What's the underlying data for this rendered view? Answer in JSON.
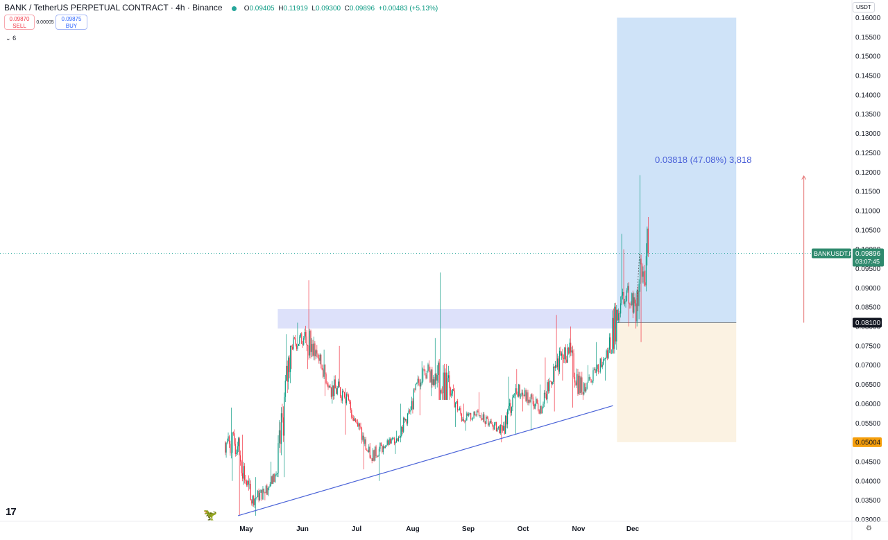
{
  "header": {
    "symbol": "BANK / TetherUS PERPETUAL CONTRACT · 4h · Binance",
    "ohlc_open_key": "O",
    "ohlc_open": "0.09405",
    "ohlc_high_key": "H",
    "ohlc_high": "0.11919",
    "ohlc_low_key": "L",
    "ohlc_low": "0.09300",
    "ohlc_close_key": "C",
    "ohlc_close": "0.09896",
    "change": "+0.00483 (+5.13%)"
  },
  "trade": {
    "sell_price": "0.09870",
    "sell_label": "SELL",
    "spread": "0.00005",
    "buy_price": "0.09875",
    "buy_label": "BUY"
  },
  "indicators_collapsed_count": "6",
  "price_axis_unit": "USDT",
  "measure": {
    "label": "0.03818 (47.08%) 3,818"
  },
  "colors": {
    "up": "#089981",
    "down": "#f23645",
    "trendline": "#4a63d8",
    "profit_zone": "#cfe3f8",
    "loss_zone": "#fbf2e2",
    "resistance_zone": "#d9def9"
  },
  "chart_data": {
    "type": "candlestick",
    "title": "BANK / TetherUS PERPETUAL CONTRACT · 4h · Binance",
    "x_ticks": [
      "May",
      "Jun",
      "Jul",
      "Aug",
      "Sep",
      "Oct",
      "Nov",
      "Dec"
    ],
    "y_ticks": [
      "0.16000",
      "0.15500",
      "0.15000",
      "0.14500",
      "0.14000",
      "0.13500",
      "0.13000",
      "0.12500",
      "0.12000",
      "0.11500",
      "0.11000",
      "0.10500",
      "0.10000",
      "0.09500",
      "0.09000",
      "0.08500",
      "0.08000",
      "0.07500",
      "0.07000",
      "0.06500",
      "0.06000",
      "0.05500",
      "0.05000",
      "0.04500",
      "0.04000",
      "0.03500",
      "0.03000"
    ],
    "ylim": [
      0.03,
      0.16
    ],
    "timeline_weeks": [
      {
        "week": 0,
        "open": 0.05,
        "high": 0.059,
        "low": 0.04,
        "close": 0.049
      },
      {
        "week": 1,
        "open": 0.049,
        "high": 0.052,
        "low": 0.031,
        "close": 0.035
      },
      {
        "week": 2,
        "open": 0.035,
        "high": 0.041,
        "low": 0.031,
        "close": 0.037
      },
      {
        "week": 3,
        "open": 0.037,
        "high": 0.045,
        "low": 0.035,
        "close": 0.042
      },
      {
        "week": 4,
        "open": 0.042,
        "high": 0.078,
        "low": 0.041,
        "close": 0.075
      },
      {
        "week": 5,
        "open": 0.075,
        "high": 0.081,
        "low": 0.069,
        "close": 0.077
      },
      {
        "week": 6,
        "open": 0.077,
        "high": 0.092,
        "low": 0.069,
        "close": 0.073
      },
      {
        "week": 7,
        "open": 0.073,
        "high": 0.074,
        "low": 0.062,
        "close": 0.064
      },
      {
        "week": 8,
        "open": 0.064,
        "high": 0.075,
        "low": 0.06,
        "close": 0.063
      },
      {
        "week": 9,
        "open": 0.063,
        "high": 0.064,
        "low": 0.052,
        "close": 0.055
      },
      {
        "week": 10,
        "open": 0.055,
        "high": 0.056,
        "low": 0.043,
        "close": 0.046
      },
      {
        "week": 11,
        "open": 0.046,
        "high": 0.05,
        "low": 0.04,
        "close": 0.049
      },
      {
        "week": 12,
        "open": 0.049,
        "high": 0.053,
        "low": 0.047,
        "close": 0.051
      },
      {
        "week": 13,
        "open": 0.051,
        "high": 0.06,
        "low": 0.05,
        "close": 0.058
      },
      {
        "week": 14,
        "open": 0.058,
        "high": 0.071,
        "low": 0.057,
        "close": 0.069
      },
      {
        "week": 15,
        "open": 0.069,
        "high": 0.077,
        "low": 0.062,
        "close": 0.066
      },
      {
        "week": 16,
        "open": 0.066,
        "high": 0.094,
        "low": 0.061,
        "close": 0.064
      },
      {
        "week": 17,
        "open": 0.064,
        "high": 0.065,
        "low": 0.054,
        "close": 0.056
      },
      {
        "week": 18,
        "open": 0.056,
        "high": 0.06,
        "low": 0.053,
        "close": 0.057
      },
      {
        "week": 19,
        "open": 0.057,
        "high": 0.063,
        "low": 0.054,
        "close": 0.055
      },
      {
        "week": 20,
        "open": 0.055,
        "high": 0.057,
        "low": 0.05,
        "close": 0.053
      },
      {
        "week": 21,
        "open": 0.053,
        "high": 0.067,
        "low": 0.052,
        "close": 0.064
      },
      {
        "week": 22,
        "open": 0.064,
        "high": 0.069,
        "low": 0.058,
        "close": 0.061
      },
      {
        "week": 23,
        "open": 0.061,
        "high": 0.065,
        "low": 0.053,
        "close": 0.059
      },
      {
        "week": 24,
        "open": 0.059,
        "high": 0.072,
        "low": 0.058,
        "close": 0.07
      },
      {
        "week": 25,
        "open": 0.07,
        "high": 0.083,
        "low": 0.066,
        "close": 0.073
      },
      {
        "week": 26,
        "open": 0.073,
        "high": 0.08,
        "low": 0.059,
        "close": 0.063
      },
      {
        "week": 27,
        "open": 0.063,
        "high": 0.07,
        "low": 0.061,
        "close": 0.068
      },
      {
        "week": 28,
        "open": 0.068,
        "high": 0.076,
        "low": 0.066,
        "close": 0.074
      },
      {
        "week": 29,
        "open": 0.074,
        "high": 0.104,
        "low": 0.073,
        "close": 0.088
      },
      {
        "week": 30,
        "open": 0.088,
        "high": 0.1,
        "low": 0.08,
        "close": 0.086
      },
      {
        "week": 31,
        "open": 0.086,
        "high": 0.11919,
        "low": 0.076,
        "close": 0.09896
      }
    ],
    "overlays": {
      "trendline": {
        "from": {
          "week": 1.0,
          "price": 0.031
        },
        "to": {
          "week": 29.3,
          "price": 0.0595
        }
      },
      "resistance_zone": {
        "week_from": 4.0,
        "week_to": 29.6,
        "price_low": 0.0795,
        "price_high": 0.0845
      },
      "long_position": {
        "week_from": 29.6,
        "week_to": 38.6,
        "entry": "0.08100",
        "target": 0.16,
        "stop": "0.05004"
      },
      "measure_arrow": {
        "week": 43.7,
        "price_from": 0.081,
        "price_to": 0.119
      }
    },
    "last_price": {
      "symbol": "BANKUSDT.P",
      "value": "0.09896",
      "countdown": "03:07:45"
    },
    "entry_label": "0.08100",
    "stop_label": "0.05004"
  }
}
